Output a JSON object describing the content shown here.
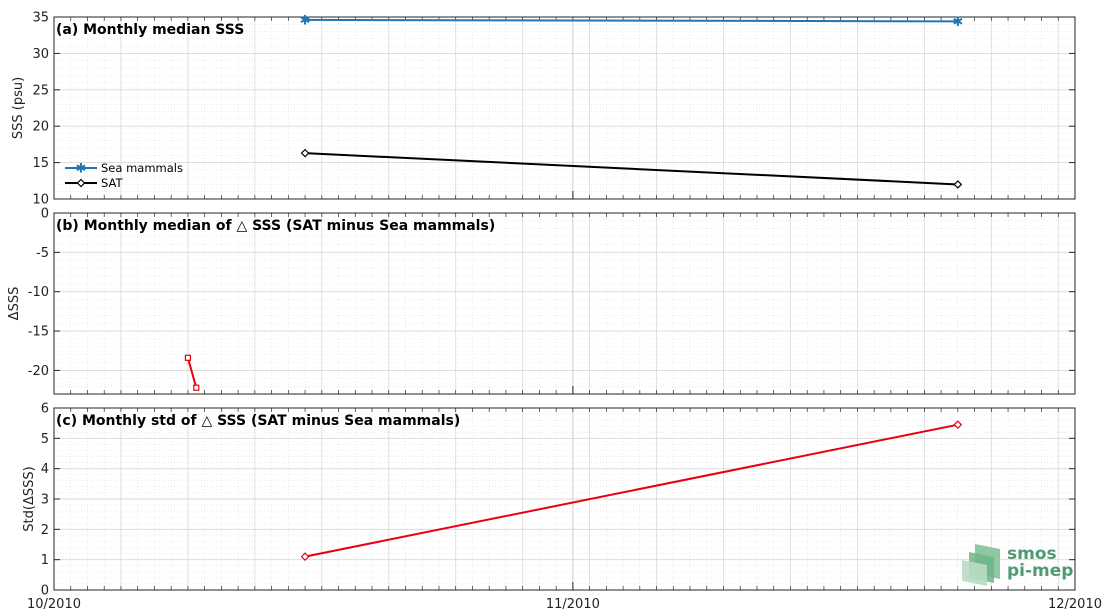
{
  "chart_data": [
    {
      "type": "line",
      "title": "(a) Monthly median SSS",
      "ylabel": "SSS (psu)",
      "xlim": [
        "2010-10-01",
        "2010-12-01"
      ],
      "ylim": [
        10,
        35
      ],
      "yticks": [
        10,
        15,
        20,
        25,
        30,
        35
      ],
      "x_tick_labels": [
        "10/2010",
        "11/2010",
        "12/2010"
      ],
      "grid": true,
      "legend": "left-bottom",
      "series": [
        {
          "name": "Sea mammals",
          "color": "#1f77b4",
          "marker": "asterisk",
          "x": [
            "2010-10-16",
            "2010-11-24"
          ],
          "y": [
            34.6,
            34.4
          ]
        },
        {
          "name": "SAT",
          "color": "#000000",
          "marker": "diamond",
          "x": [
            "2010-10-16",
            "2010-11-24"
          ],
          "y": [
            16.3,
            12.0
          ]
        }
      ]
    },
    {
      "type": "line",
      "title": "(b) Monthly median of △ SSS (SAT minus Sea mammals)",
      "ylabel": "ΔSSS",
      "xlim": [
        "2010-10-01",
        "2010-12-01"
      ],
      "ylim": [
        -23,
        0
      ],
      "yticks": [
        -20,
        -15,
        -10,
        -5,
        0
      ],
      "grid": true,
      "series": [
        {
          "color": "#e8000b",
          "marker": "square",
          "x": [
            "2010-10-09",
            "2010-10-09.5"
          ],
          "y": [
            -18.4,
            -22.2
          ]
        }
      ]
    },
    {
      "type": "line",
      "title": "(c) Monthly std of △ SSS (SAT minus Sea mammals)",
      "ylabel": "Std(ΔSSS)",
      "xlim": [
        "2010-10-01",
        "2010-12-01"
      ],
      "ylim": [
        0,
        6
      ],
      "yticks": [
        0,
        1,
        2,
        3,
        4,
        5,
        6
      ],
      "grid": true,
      "series": [
        {
          "color": "#e8000b",
          "marker": "diamond",
          "x": [
            "2010-10-16",
            "2010-11-24"
          ],
          "y": [
            1.1,
            5.45
          ]
        }
      ]
    }
  ],
  "logo": {
    "line1": "smos",
    "line2": "pi-mep"
  },
  "colors": {
    "axis": "#262626",
    "grid": "#d9d9d9"
  }
}
